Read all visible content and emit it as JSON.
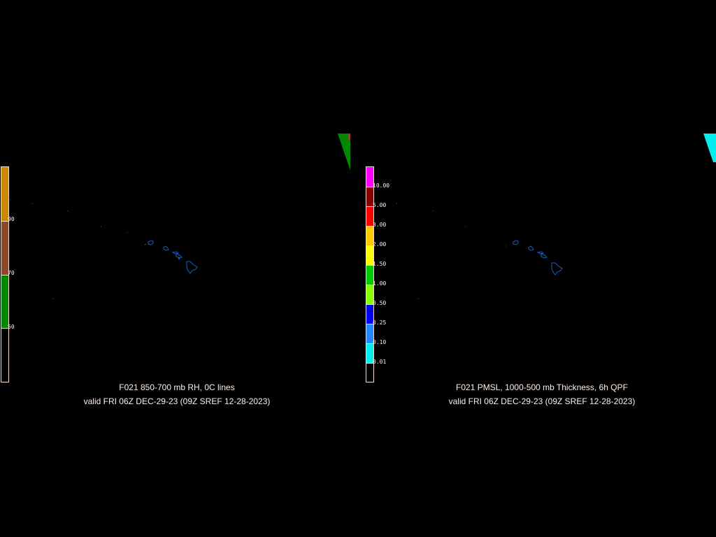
{
  "panels": [
    {
      "title_line1": "F021 850-700 mb RH, 0C lines",
      "title_line2": "valid FRI 06Z DEC-29-23 (09Z SREF 12-28-2023)",
      "colorbar": {
        "segments": [
          {
            "color": "#cc8800"
          },
          {
            "color": "#8b4a2b"
          },
          {
            "color": "#008800"
          },
          {
            "color": "#000000"
          }
        ],
        "labels": [
          "90",
          "70",
          "50"
        ]
      },
      "field_colors": [
        "#008800",
        "#8b4a2b"
      ]
    },
    {
      "title_line1": "F021 PMSL, 1000-500 mb Thickness, 6h QPF",
      "title_line2": "valid FRI 06Z DEC-29-23 (09Z SREF 12-28-2023)",
      "colorbar": {
        "segments": [
          {
            "color": "#ff00ff"
          },
          {
            "color": "#880000"
          },
          {
            "color": "#ff0000"
          },
          {
            "color": "#ffcc00"
          },
          {
            "color": "#ffff00"
          },
          {
            "color": "#00cc00"
          },
          {
            "color": "#88ff00"
          },
          {
            "color": "#0000ff"
          },
          {
            "color": "#2288ff"
          },
          {
            "color": "#00eeee"
          },
          {
            "color": "#000000"
          }
        ],
        "labels": [
          "10.00",
          "5.00",
          "3.00",
          "2.00",
          "1.50",
          "1.00",
          "0.50",
          "0.25",
          "0.10",
          "0.01"
        ]
      },
      "field_colors": [
        "#00eeee"
      ]
    }
  ],
  "coastline_color": "#1a5fc0"
}
